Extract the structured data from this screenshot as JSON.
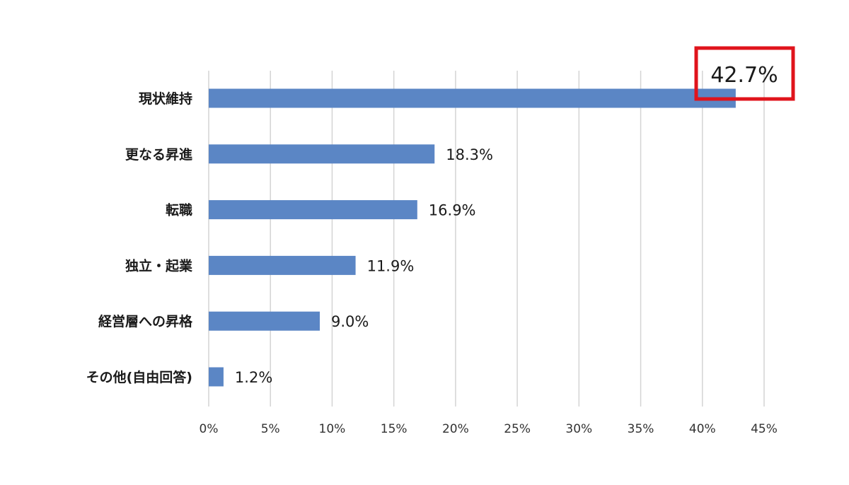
{
  "chart_data": {
    "type": "bar",
    "orientation": "horizontal",
    "categories": [
      "現状維持",
      "更なる昇進",
      "転職",
      "独立・起業",
      "経営層への昇格",
      "その他(自由回答)"
    ],
    "values": [
      42.7,
      18.3,
      16.9,
      11.9,
      9.0,
      1.2
    ],
    "data_labels": [
      "42.7%",
      "18.3%",
      "16.9%",
      "11.9%",
      "9.0%",
      "1.2%"
    ],
    "x_ticks": [
      "0%",
      "5%",
      "10%",
      "15%",
      "20%",
      "25%",
      "30%",
      "35%",
      "40%",
      "45%"
    ],
    "xlim": [
      0,
      45
    ],
    "grid": true,
    "highlighted_category": "現状維持",
    "colors": {
      "bar": "#5b86c5",
      "gridline": "#d4d4d4",
      "highlight_box": "#e0141c"
    }
  }
}
